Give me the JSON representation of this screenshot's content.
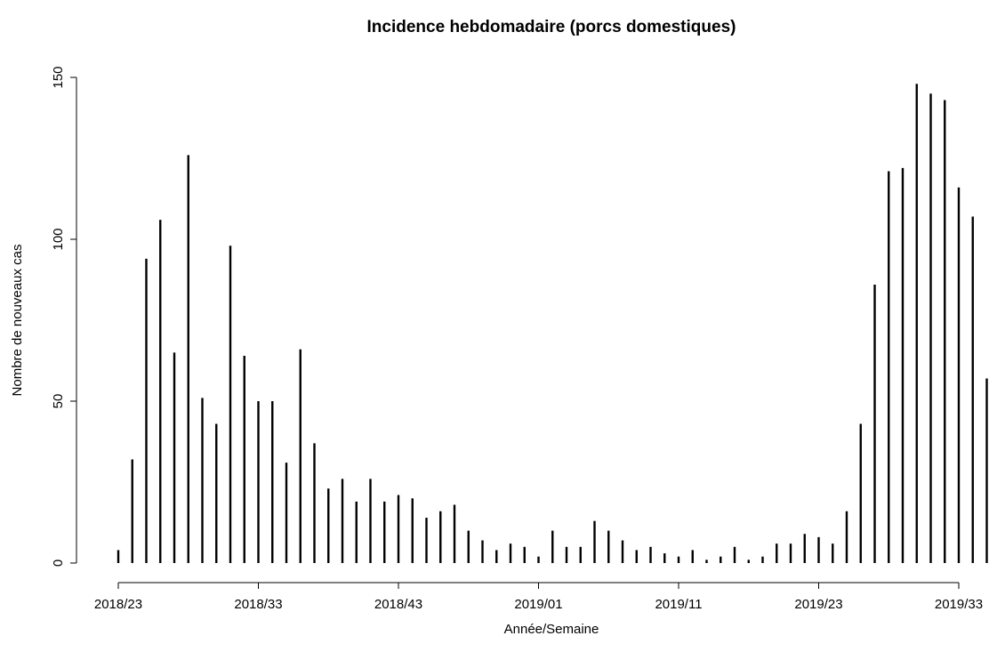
{
  "chart_data": {
    "type": "bar",
    "title": "Incidence hebdomadaire (porcs domestiques)",
    "xlabel": "Année/Semaine",
    "ylabel": "Nombre de nouveaux cas",
    "ylim": [
      0,
      150
    ],
    "y_ticks": [
      0,
      50,
      100,
      150
    ],
    "x_tick_labels": [
      "2018/23",
      "2018/33",
      "2018/43",
      "2019/01",
      "2019/11",
      "2019/23",
      "2019/33"
    ],
    "grid": false,
    "legend": "none",
    "bar_color": "#000000",
    "series": [
      {
        "values": [
          4,
          32,
          94,
          106,
          65,
          126,
          51,
          43,
          98,
          64,
          50,
          50,
          31,
          66,
          37,
          23,
          26,
          19,
          26,
          19,
          21,
          20,
          14,
          16,
          18,
          10,
          7,
          4,
          6,
          5,
          2,
          10,
          5,
          5,
          13,
          10,
          7,
          4,
          5,
          3,
          2,
          4,
          1,
          2,
          5,
          1,
          2,
          6,
          6,
          9,
          8,
          6,
          16,
          43,
          86,
          121,
          122,
          148,
          145,
          143,
          116,
          107,
          57
        ]
      }
    ]
  }
}
